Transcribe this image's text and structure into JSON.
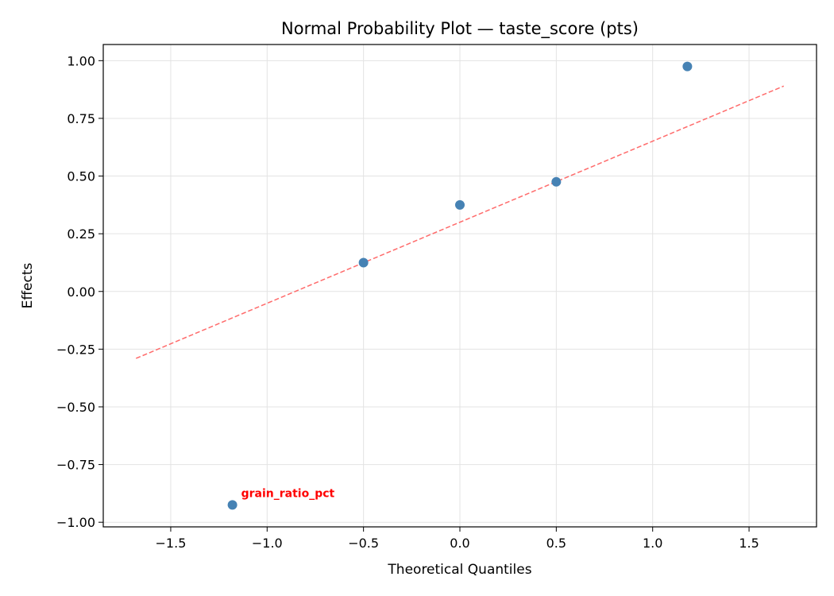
{
  "chart_data": {
    "type": "scatter",
    "title": "Normal Probability Plot — taste_score (pts)",
    "xlabel": "Theoretical Quantiles",
    "ylabel": "Effects",
    "xlim": [
      -1.85,
      1.85
    ],
    "ylim": [
      -1.02,
      1.07
    ],
    "grid": true,
    "x_ticks": [
      -1.5,
      -1.0,
      -0.5,
      0.0,
      0.5,
      1.0,
      1.5
    ],
    "x_tick_labels": [
      "−1.5",
      "−1.0",
      "−0.5",
      "0.0",
      "0.5",
      "1.0",
      "1.5"
    ],
    "y_ticks": [
      1.0,
      0.75,
      0.5,
      0.25,
      0.0,
      -0.25,
      -0.5,
      -0.75,
      -1.0
    ],
    "y_tick_labels": [
      "1.00",
      "0.75",
      "0.50",
      "0.25",
      "0.00",
      "−0.25",
      "−0.50",
      "−0.75",
      "−1.00"
    ],
    "points": [
      {
        "x": -1.18,
        "y": -0.925
      },
      {
        "x": -0.5,
        "y": 0.125
      },
      {
        "x": 0.0,
        "y": 0.375
      },
      {
        "x": 0.5,
        "y": 0.475
      },
      {
        "x": 1.18,
        "y": 0.975
      }
    ],
    "point_color": "#4682b4",
    "reference_line": {
      "x": [
        -1.68,
        1.68
      ],
      "y": [
        -0.29,
        0.89
      ],
      "color": "#ff6b6b",
      "style": "dashed"
    },
    "annotations": [
      {
        "text": "grain_ratio_pct",
        "x": -1.18,
        "y": -0.925,
        "color": "#ff0000"
      }
    ]
  }
}
